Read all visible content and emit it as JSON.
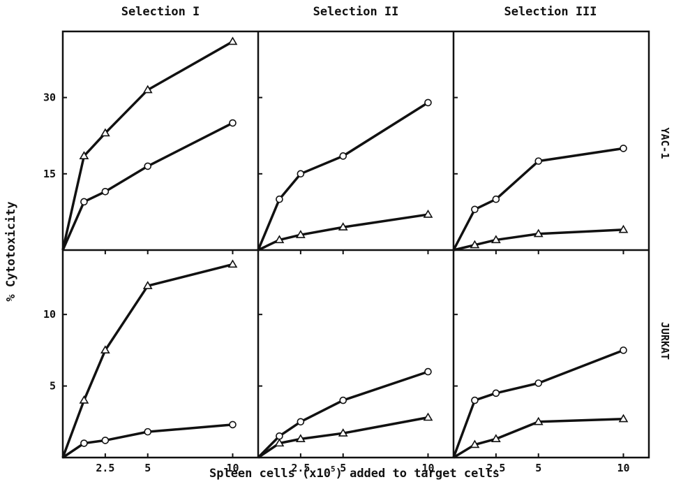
{
  "chart_data": {
    "type": "line",
    "xlabel_parts": [
      "Spleen cells (x10",
      "5",
      ") added to target cells"
    ],
    "ylabel": "% Cytotoxicity",
    "columns": [
      "Selection I",
      "Selection II",
      "Selection III"
    ],
    "rows": [
      "YAC-1",
      "JURKAT"
    ],
    "x_ticks": [
      2.5,
      5,
      10
    ],
    "x_tick_labels": [
      "2.5",
      "5",
      "10"
    ],
    "y_ticks_top": [
      15,
      30
    ],
    "y_ticks_bottom": [
      5,
      10
    ],
    "panels": [
      {
        "row": "YAC-1",
        "column": "Selection I",
        "ylim": [
          0,
          43
        ],
        "series": [
          {
            "marker": "triangle",
            "x": [
              0,
              1.25,
              2.5,
              5,
              10
            ],
            "y": [
              0,
              18.5,
              23,
              31.5,
              41
            ]
          },
          {
            "marker": "circle",
            "x": [
              0,
              1.25,
              2.5,
              5,
              10
            ],
            "y": [
              0,
              9.5,
              11.5,
              16.5,
              25
            ]
          }
        ]
      },
      {
        "row": "YAC-1",
        "column": "Selection II",
        "ylim": [
          0,
          43
        ],
        "series": [
          {
            "marker": "circle",
            "x": [
              0,
              1.25,
              2.5,
              5,
              10
            ],
            "y": [
              0,
              10,
              15,
              18.5,
              29
            ]
          },
          {
            "marker": "triangle",
            "x": [
              0,
              1.25,
              2.5,
              5,
              10
            ],
            "y": [
              0,
              2,
              3,
              4.5,
              7
            ]
          }
        ]
      },
      {
        "row": "YAC-1",
        "column": "Selection III",
        "ylim": [
          0,
          43
        ],
        "series": [
          {
            "marker": "circle",
            "x": [
              0,
              1.25,
              2.5,
              5,
              10
            ],
            "y": [
              0,
              8,
              10,
              17.5,
              20
            ]
          },
          {
            "marker": "triangle",
            "x": [
              0,
              1.25,
              2.5,
              5,
              10
            ],
            "y": [
              0,
              1,
              2,
              3.2,
              4
            ]
          }
        ]
      },
      {
        "row": "JURKAT",
        "column": "Selection I",
        "ylim": [
          0,
          14.5
        ],
        "series": [
          {
            "marker": "triangle",
            "x": [
              0,
              1.25,
              2.5,
              5,
              10
            ],
            "y": [
              0,
              4,
              7.5,
              12,
              13.5
            ]
          },
          {
            "marker": "circle",
            "x": [
              0,
              1.25,
              2.5,
              5,
              10
            ],
            "y": [
              0,
              1,
              1.2,
              1.8,
              2.3
            ]
          }
        ]
      },
      {
        "row": "JURKAT",
        "column": "Selection II",
        "ylim": [
          0,
          14.5
        ],
        "series": [
          {
            "marker": "circle",
            "x": [
              0,
              1.25,
              2.5,
              5,
              10
            ],
            "y": [
              0,
              1.5,
              2.5,
              4,
              6
            ]
          },
          {
            "marker": "triangle",
            "x": [
              0,
              1.25,
              2.5,
              5,
              10
            ],
            "y": [
              0,
              1,
              1.3,
              1.7,
              2.8
            ]
          }
        ]
      },
      {
        "row": "JURKAT",
        "column": "Selection III",
        "ylim": [
          0,
          14.5
        ],
        "series": [
          {
            "marker": "circle",
            "x": [
              0,
              1.25,
              2.5,
              5,
              10
            ],
            "y": [
              0,
              4,
              4.5,
              5.2,
              7.5
            ]
          },
          {
            "marker": "triangle",
            "x": [
              0,
              1.25,
              2.5,
              5,
              10
            ],
            "y": [
              0,
              0.9,
              1.3,
              2.5,
              2.7
            ]
          }
        ]
      }
    ]
  }
}
